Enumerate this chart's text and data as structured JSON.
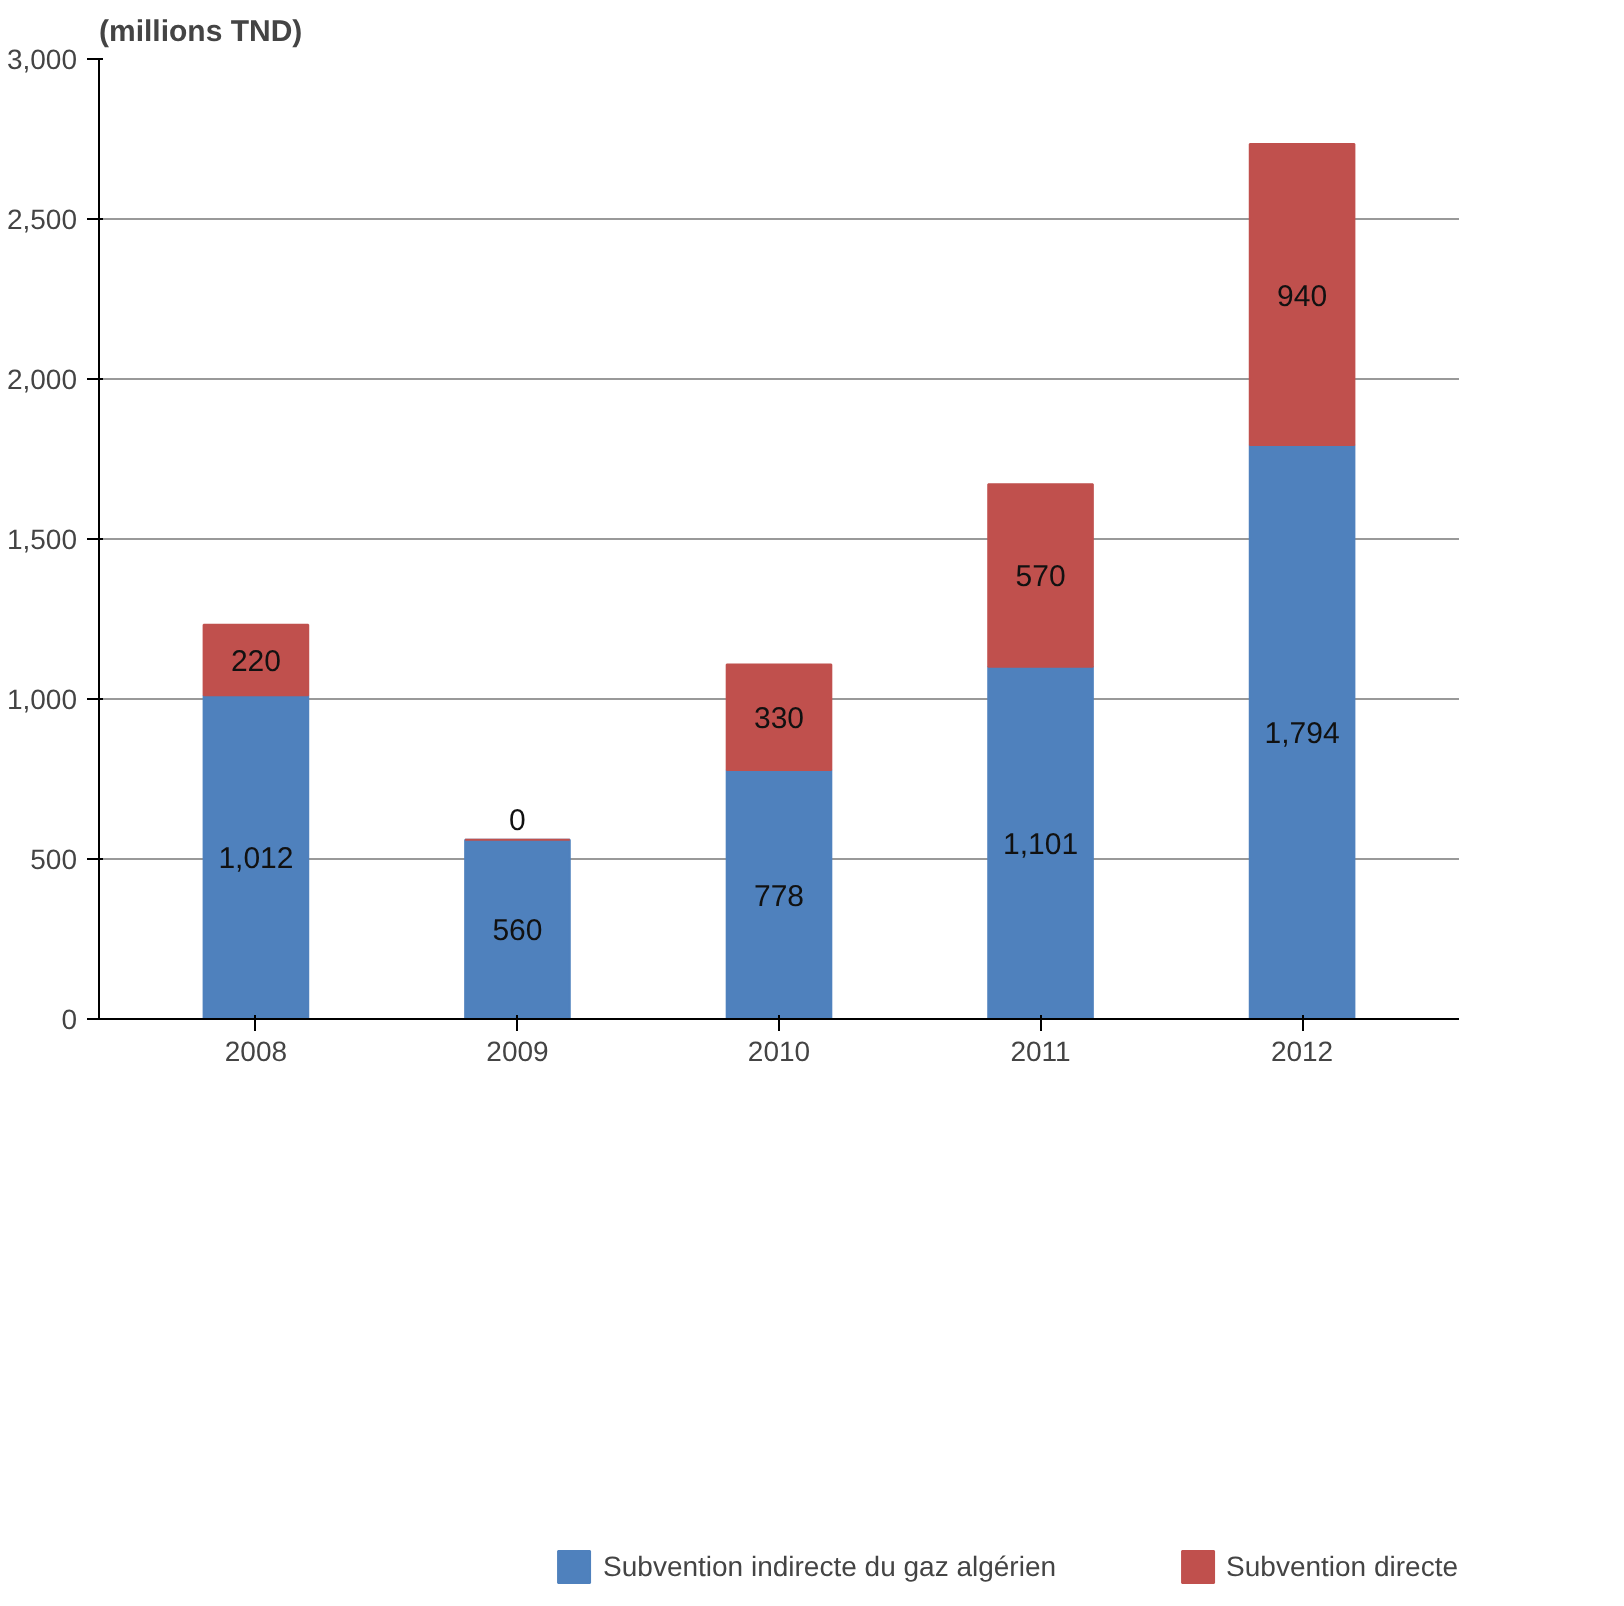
{
  "chart_data": {
    "type": "bar",
    "title": "(millions TND)",
    "categories": [
      "2008",
      "2009",
      "2010",
      "2011",
      "2012"
    ],
    "series": [
      {
        "name": "Subvention indirecte du gaz algérien",
        "color": "#4f81bd",
        "values": [
          1012,
          560,
          778,
          1101,
          1794
        ],
        "value_labels": [
          "1,012",
          "560",
          "778",
          "1,101",
          "1,794"
        ]
      },
      {
        "name": "Subvention directe",
        "color": "#c0504d",
        "values": [
          220,
          0,
          330,
          570,
          940
        ],
        "value_labels": [
          "220",
          "0",
          "330",
          "570",
          "940"
        ]
      }
    ],
    "stacked": true,
    "ylim": [
      0,
      3000
    ],
    "yticks": [
      0,
      500,
      {
        "value": 1000,
        "label": "1,000"
      },
      {
        "value": 1500,
        "label": "1,500"
      },
      {
        "value": 2000,
        "label": "2,000"
      },
      {
        "value": 2500,
        "label": "2,500"
      },
      {
        "value": 3000,
        "label": "3,000"
      }
    ],
    "grid": "y",
    "legend": "bottom"
  }
}
